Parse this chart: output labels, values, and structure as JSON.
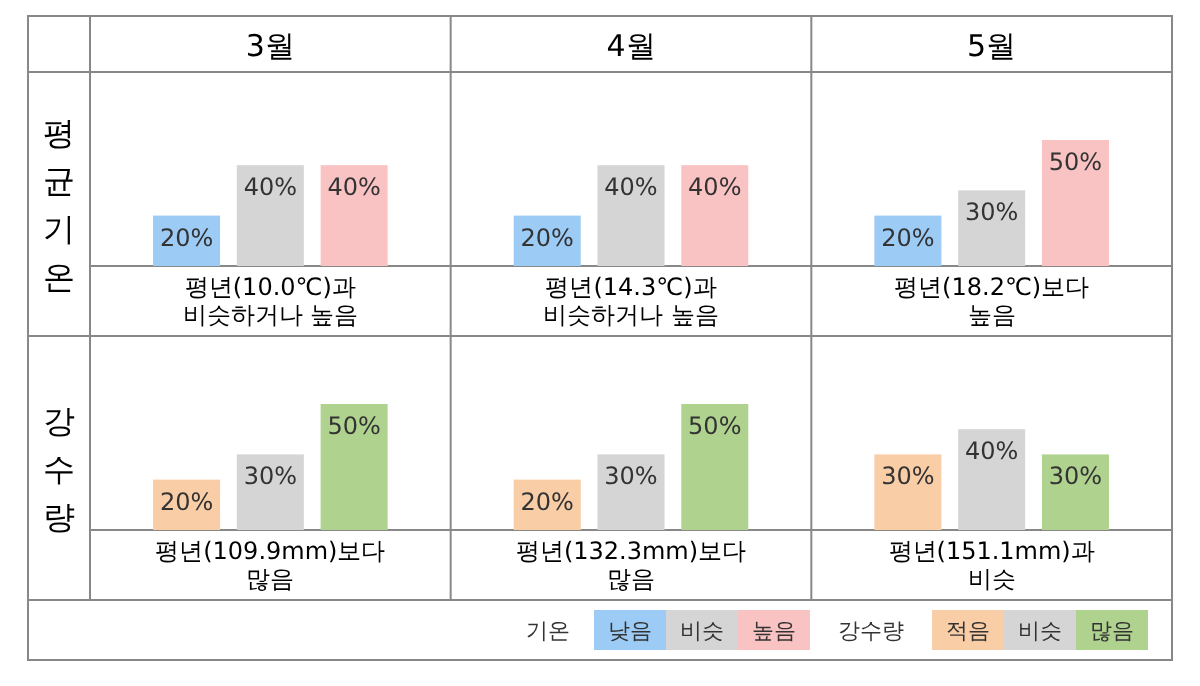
{
  "chart_data": [
    {
      "type": "bar",
      "title": "3월",
      "ylabel": "평균기온",
      "categories": [
        null
      ],
      "annotations": [
        "평년(10.0℃)과\n비슷하거나 높음"
      ],
      "series": [
        {
          "color": "#9ccbf5",
          "values": [
            20
          ],
          "value_labels": [
            "20%"
          ]
        },
        {
          "color": "#d5d5d5",
          "values": [
            40
          ],
          "value_labels": [
            "40%"
          ]
        },
        {
          "color": "#fac3c3",
          "values": [
            40
          ],
          "value_labels": [
            "40%"
          ]
        }
      ]
    },
    {
      "type": "bar",
      "title": "4월",
      "categories": [
        null
      ],
      "annotations": [
        "평년(14.3℃)과\n비슷하거나 높음"
      ],
      "series": [
        {
          "color": "#9ccbf5",
          "values": [
            20
          ],
          "value_labels": [
            "20%"
          ]
        },
        {
          "color": "#d5d5d5",
          "values": [
            40
          ],
          "value_labels": [
            "40%"
          ]
        },
        {
          "color": "#fac3c3",
          "values": [
            40
          ],
          "value_labels": [
            "40%"
          ]
        }
      ]
    },
    {
      "type": "bar",
      "title": "5월",
      "categories": [
        null
      ],
      "annotations": [
        "평년(18.2℃)보다\n높음"
      ],
      "legend": "bottom left",
      "legend_title": "기온",
      "series": [
        {
          "name": "낮음",
          "color": "#9ccbf5",
          "values": [
            20
          ],
          "value_labels": [
            "20%"
          ]
        },
        {
          "name": "비슷",
          "color": "#d5d5d5",
          "values": [
            30
          ],
          "value_labels": [
            "30%"
          ]
        },
        {
          "name": "높음",
          "color": "#fac3c3",
          "values": [
            50
          ],
          "value_labels": [
            "50%"
          ]
        }
      ]
    },
    {
      "type": "bar",
      "ylabel": "강수량",
      "categories": [
        null
      ],
      "annotations": [
        "평년(109.9mm)보다\n많음"
      ],
      "series": [
        {
          "color": "#f9cda6",
          "values": [
            20
          ],
          "value_labels": [
            "20%"
          ]
        },
        {
          "color": "#d5d5d5",
          "values": [
            30
          ],
          "value_labels": [
            "30%"
          ]
        },
        {
          "color": "#b0d28f",
          "values": [
            50
          ],
          "value_labels": [
            "50%"
          ]
        }
      ]
    },
    {
      "type": "bar",
      "categories": [
        null
      ],
      "annotations": [
        "평년(132.3mm)보다\n많음"
      ],
      "series": [
        {
          "color": "#f9cda6",
          "values": [
            20
          ],
          "value_labels": [
            "20%"
          ]
        },
        {
          "color": "#d5d5d5",
          "values": [
            30
          ],
          "value_labels": [
            "30%"
          ]
        },
        {
          "color": "#b0d28f",
          "values": [
            50
          ],
          "value_labels": [
            "50%"
          ]
        }
      ]
    },
    {
      "type": "bar",
      "categories": [
        null
      ],
      "annotations": [
        "평년(151.1mm)과\n비슷"
      ],
      "legend": "bottom right",
      "legend_title": "강수량",
      "series": [
        {
          "name": "적음",
          "color": "#f9cda6",
          "values": [
            30
          ],
          "value_labels": [
            "30%"
          ]
        },
        {
          "name": "비슷",
          "color": "#d5d5d5",
          "values": [
            40
          ],
          "value_labels": [
            "40%"
          ]
        },
        {
          "name": "많음",
          "color": "#b0d28f",
          "values": [
            30
          ],
          "value_labels": [
            "30%"
          ]
        }
      ]
    }
  ]
}
